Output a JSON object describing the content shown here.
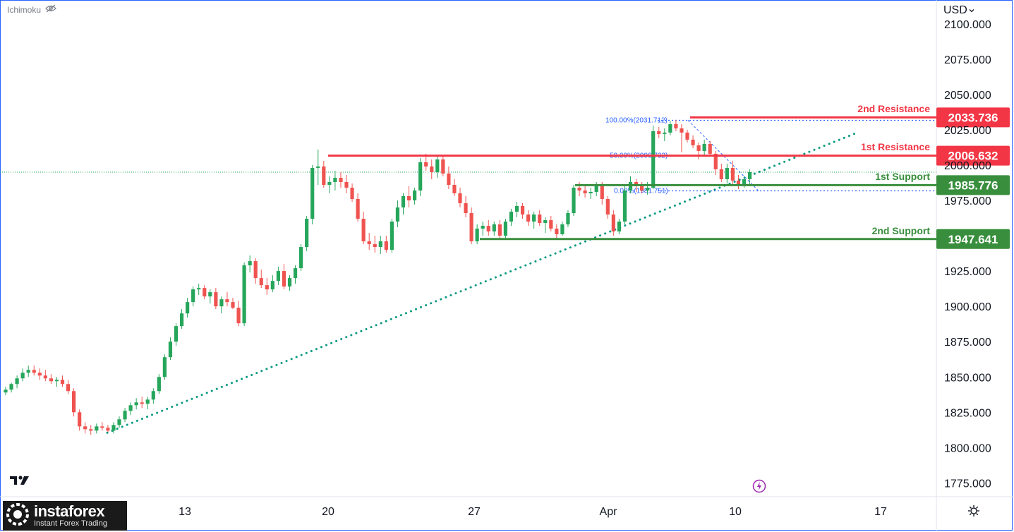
{
  "indicator": {
    "name": "Ichimoku",
    "visibility_icon": "eye-crossed-icon"
  },
  "currency": {
    "label": "USD",
    "icon": "chevron-down-icon"
  },
  "brand": {
    "name": "instaforex",
    "tagline": "Instant Forex Trading"
  },
  "colors": {
    "up": "#26a65b",
    "down": "#ef5350",
    "resistance": "#f23645",
    "support": "#388e3c",
    "trendline": "#089981",
    "fib": "#2962ff"
  },
  "chart_data": {
    "type": "candlestick",
    "y_ticks": [
      "2100.000",
      "2075.000",
      "2050.000",
      "2025.000",
      "2000.000",
      "1975.000",
      "1925.000",
      "1900.000",
      "1875.000",
      "1850.000",
      "1825.000",
      "1800.000",
      "1775.000"
    ],
    "x_ticks": [
      "13",
      "20",
      "27",
      "Apr",
      "10",
      "17"
    ],
    "ylim": [
      1768,
      2104
    ],
    "levels": [
      {
        "label": "2nd Resistance",
        "value": "2033.736",
        "kind": "resistance"
      },
      {
        "label": "1st Resistance",
        "value": "2006.632",
        "kind": "resistance"
      },
      {
        "label": "1st Support",
        "value": "1985.776",
        "kind": "support"
      },
      {
        "label": "2nd Support",
        "value": "1947.641",
        "kind": "support"
      }
    ],
    "fibonacci": [
      {
        "label": "100.00%(2031.712)",
        "value": 2031.712
      },
      {
        "label": "50.00%(2006.732)",
        "value": 2006.732
      },
      {
        "label": "0.00%(1981.751)",
        "value": 1981.751
      }
    ],
    "candles_ohlc": [
      [
        1839,
        1843,
        1837,
        1841
      ],
      [
        1841,
        1846,
        1839,
        1845
      ],
      [
        1845,
        1851,
        1842,
        1849
      ],
      [
        1849,
        1856,
        1847,
        1853
      ],
      [
        1853,
        1858,
        1850,
        1855
      ],
      [
        1855,
        1858,
        1851,
        1853
      ],
      [
        1853,
        1856,
        1848,
        1851
      ],
      [
        1851,
        1855,
        1847,
        1849
      ],
      [
        1849,
        1852,
        1845,
        1847
      ],
      [
        1847,
        1850,
        1843,
        1848
      ],
      [
        1848,
        1851,
        1843,
        1845
      ],
      [
        1845,
        1848,
        1838,
        1840
      ],
      [
        1840,
        1842,
        1822,
        1825
      ],
      [
        1825,
        1827,
        1812,
        1815
      ],
      [
        1815,
        1818,
        1810,
        1813
      ],
      [
        1813,
        1816,
        1809,
        1812
      ],
      [
        1812,
        1817,
        1810,
        1815
      ],
      [
        1815,
        1818,
        1812,
        1814
      ],
      [
        1814,
        1816,
        1811,
        1812
      ],
      [
        1812,
        1818,
        1810,
        1816
      ],
      [
        1816,
        1822,
        1814,
        1820
      ],
      [
        1820,
        1828,
        1818,
        1826
      ],
      [
        1826,
        1832,
        1823,
        1830
      ],
      [
        1830,
        1835,
        1827,
        1832
      ],
      [
        1832,
        1836,
        1828,
        1831
      ],
      [
        1831,
        1836,
        1827,
        1834
      ],
      [
        1834,
        1842,
        1831,
        1840
      ],
      [
        1840,
        1852,
        1838,
        1850
      ],
      [
        1850,
        1866,
        1848,
        1864
      ],
      [
        1864,
        1878,
        1862,
        1875
      ],
      [
        1875,
        1888,
        1872,
        1886
      ],
      [
        1886,
        1898,
        1884,
        1895
      ],
      [
        1895,
        1906,
        1892,
        1903
      ],
      [
        1903,
        1914,
        1900,
        1912
      ],
      [
        1912,
        1916,
        1908,
        1913
      ],
      [
        1913,
        1915,
        1905,
        1907
      ],
      [
        1907,
        1912,
        1902,
        1910
      ],
      [
        1910,
        1913,
        1898,
        1900
      ],
      [
        1900,
        1907,
        1895,
        1905
      ],
      [
        1905,
        1910,
        1900,
        1903
      ],
      [
        1903,
        1906,
        1898,
        1899
      ],
      [
        1899,
        1904,
        1886,
        1888
      ],
      [
        1888,
        1931,
        1886,
        1929
      ],
      [
        1929,
        1936,
        1924,
        1932
      ],
      [
        1932,
        1934,
        1916,
        1920
      ],
      [
        1920,
        1926,
        1913,
        1915
      ],
      [
        1915,
        1920,
        1908,
        1912
      ],
      [
        1912,
        1922,
        1910,
        1918
      ],
      [
        1918,
        1928,
        1915,
        1925
      ],
      [
        1925,
        1930,
        1912,
        1914
      ],
      [
        1914,
        1922,
        1911,
        1920
      ],
      [
        1920,
        1929,
        1916,
        1927
      ],
      [
        1927,
        1944,
        1925,
        1942
      ],
      [
        1942,
        1964,
        1939,
        1962
      ],
      [
        1962,
        2000,
        1958,
        1998
      ],
      [
        1998,
        2011,
        1986,
        1999
      ],
      [
        1999,
        2003,
        1984,
        1986
      ],
      [
        1986,
        1992,
        1980,
        1988
      ],
      [
        1988,
        1996,
        1982,
        1991
      ],
      [
        1991,
        1995,
        1984,
        1988
      ],
      [
        1988,
        1993,
        1980,
        1984
      ],
      [
        1984,
        1987,
        1974,
        1976
      ],
      [
        1976,
        1980,
        1960,
        1962
      ],
      [
        1962,
        1967,
        1944,
        1946
      ],
      [
        1946,
        1952,
        1940,
        1944
      ],
      [
        1944,
        1950,
        1938,
        1942
      ],
      [
        1942,
        1950,
        1937,
        1946
      ],
      [
        1946,
        1950,
        1938,
        1940
      ],
      [
        1940,
        1962,
        1938,
        1960
      ],
      [
        1960,
        1975,
        1956,
        1970
      ],
      [
        1970,
        1980,
        1965,
        1978
      ],
      [
        1978,
        1985,
        1970,
        1975
      ],
      [
        1975,
        1984,
        1972,
        1982
      ],
      [
        1982,
        2005,
        1978,
        2002
      ],
      [
        2002,
        2008,
        1996,
        1999
      ],
      [
        1999,
        2004,
        1990,
        1995
      ],
      [
        1995,
        2006,
        1991,
        2004
      ],
      [
        2004,
        2007,
        1992,
        1994
      ],
      [
        1994,
        1999,
        1983,
        1986
      ],
      [
        1986,
        1990,
        1978,
        1980
      ],
      [
        1980,
        1984,
        1970,
        1973
      ],
      [
        1973,
        1978,
        1963,
        1966
      ],
      [
        1966,
        1970,
        1944,
        1946
      ],
      [
        1946,
        1958,
        1944,
        1955
      ],
      [
        1955,
        1960,
        1950,
        1957
      ],
      [
        1957,
        1961,
        1950,
        1953
      ],
      [
        1953,
        1960,
        1950,
        1958
      ],
      [
        1958,
        1961,
        1948,
        1950
      ],
      [
        1950,
        1962,
        1948,
        1960
      ],
      [
        1960,
        1969,
        1957,
        1967
      ],
      [
        1967,
        1974,
        1963,
        1971
      ],
      [
        1971,
        1973,
        1962,
        1965
      ],
      [
        1965,
        1968,
        1957,
        1960
      ],
      [
        1960,
        1967,
        1955,
        1965
      ],
      [
        1965,
        1968,
        1957,
        1959
      ],
      [
        1959,
        1963,
        1952,
        1961
      ],
      [
        1961,
        1964,
        1953,
        1955
      ],
      [
        1955,
        1958,
        1948,
        1951
      ],
      [
        1951,
        1960,
        1950,
        1958
      ],
      [
        1958,
        1968,
        1956,
        1966
      ],
      [
        1966,
        1986,
        1964,
        1984
      ],
      [
        1984,
        1988,
        1978,
        1982
      ],
      [
        1982,
        1985,
        1977,
        1980
      ],
      [
        1980,
        1984,
        1976,
        1981
      ],
      [
        1981,
        1988,
        1978,
        1986
      ],
      [
        1986,
        1988,
        1972,
        1976
      ],
      [
        1976,
        1978,
        1962,
        1965
      ],
      [
        1965,
        1968,
        1950,
        1953
      ],
      [
        1953,
        1962,
        1951,
        1960
      ],
      [
        1960,
        1985,
        1958,
        1982
      ],
      [
        1982,
        1992,
        1980,
        1988
      ],
      [
        1988,
        1990,
        1981,
        1985
      ],
      [
        1985,
        1988,
        1980,
        1982
      ],
      [
        1982,
        1988,
        1979,
        1984
      ],
      [
        1984,
        2028,
        1983,
        2024
      ],
      [
        2024,
        2027,
        2019,
        2022
      ],
      [
        2022,
        2026,
        2017,
        2023
      ],
      [
        2023,
        2031,
        2021,
        2029
      ],
      [
        2029,
        2032,
        2024,
        2026
      ],
      [
        2026,
        2029,
        2009,
        2023
      ],
      [
        2023,
        2025,
        2016,
        2018
      ],
      [
        2018,
        2021,
        2012,
        2014
      ],
      [
        2014,
        2016,
        2004,
        2010
      ],
      [
        2010,
        2018,
        2006,
        2015
      ],
      [
        2015,
        2017,
        2006,
        2008
      ],
      [
        2008,
        2010,
        1993,
        1997
      ],
      [
        1997,
        2001,
        1988,
        1990
      ],
      [
        1990,
        2001,
        1987,
        1998
      ],
      [
        1998,
        2003,
        1986,
        1989
      ],
      [
        1989,
        1993,
        1983,
        1986
      ],
      [
        1986,
        1992,
        1984,
        1990
      ],
      [
        1990,
        1997,
        1986,
        1995
      ]
    ]
  }
}
